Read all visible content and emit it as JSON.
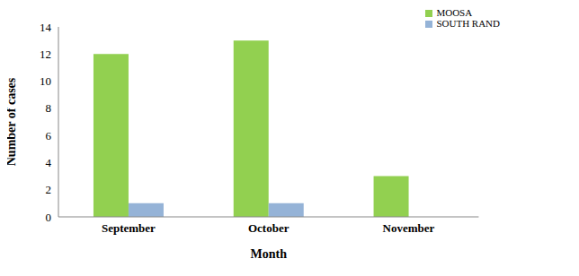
{
  "chart_data": {
    "type": "bar",
    "x_label": "Month",
    "y_label": "Number of cases",
    "categories": [
      "September",
      "October",
      "November"
    ],
    "series": [
      {
        "name": "MOOSA",
        "color": "#92d050",
        "values": [
          12,
          13,
          3
        ]
      },
      {
        "name": "SOUTH RAND",
        "color": "#95b3d7",
        "values": [
          1,
          1,
          0
        ]
      }
    ],
    "ylim": [
      0,
      14
    ],
    "yticks": [
      0,
      2,
      4,
      6,
      8,
      10,
      12,
      14
    ],
    "grid": false,
    "legend": "upper right"
  }
}
